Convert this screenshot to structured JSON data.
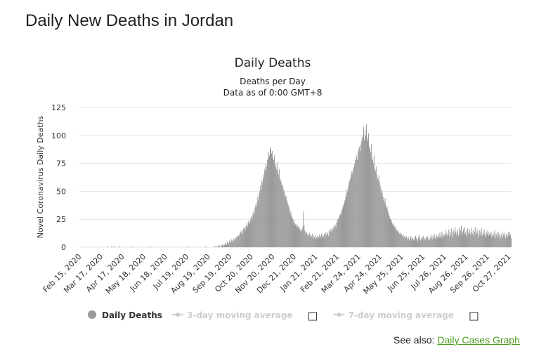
{
  "header": {
    "title": "Daily New Deaths in Jordan"
  },
  "chart_data": {
    "type": "bar",
    "title": "Daily Deaths",
    "subtitle": "Deaths per Day",
    "note": "Data as of 0:00 GMT+8",
    "y_label": "Novel Coronavirus Daily Deaths",
    "ylim": [
      0,
      125
    ],
    "yticks": [
      0,
      25,
      50,
      75,
      100,
      125
    ],
    "grid": true,
    "categories": [
      "Feb 15, 2020",
      null,
      null,
      null,
      null,
      null,
      null,
      null,
      null,
      null,
      null,
      null,
      null,
      null,
      null,
      null,
      null,
      null,
      null,
      null,
      null,
      null,
      null,
      null,
      null,
      null,
      null,
      null,
      null,
      null,
      null,
      "Mar 17, 2020",
      null,
      null,
      null,
      null,
      null,
      null,
      null,
      null,
      null,
      null,
      null,
      null,
      null,
      null,
      null,
      null,
      null,
      null,
      null,
      null,
      null,
      null,
      null,
      null,
      null,
      null,
      null,
      null,
      null,
      null,
      "Apr 17, 2020",
      null,
      null,
      null,
      null,
      null,
      null,
      null,
      null,
      null,
      null,
      null,
      null,
      null,
      null,
      null,
      null,
      null,
      null,
      null,
      null,
      null,
      null,
      null,
      null,
      null,
      null,
      null,
      null,
      null,
      null,
      "May 18, 2020",
      null,
      null,
      null,
      null,
      null,
      null,
      null,
      null,
      null,
      null,
      null,
      null,
      null,
      null,
      null,
      null,
      null,
      null,
      null,
      null,
      null,
      null,
      null,
      null,
      null,
      null,
      null,
      null,
      null,
      null,
      "Jun 18, 2020",
      null,
      null,
      null,
      null,
      null,
      null,
      null,
      null,
      null,
      null,
      null,
      null,
      null,
      null,
      null,
      null,
      null,
      null,
      null,
      null,
      null,
      null,
      null,
      null,
      null,
      null,
      null,
      null,
      null,
      null,
      "Jul 19, 2020",
      null,
      null,
      null,
      null,
      null,
      null,
      null,
      null,
      null,
      null,
      null,
      null,
      null,
      null,
      null,
      null,
      null,
      null,
      null,
      null,
      null,
      null,
      null,
      null,
      null,
      null,
      null,
      null,
      null,
      null,
      "Aug 19, 2020",
      null,
      null,
      null,
      null,
      null,
      null,
      null,
      null,
      null,
      null,
      null,
      null,
      null,
      null,
      null,
      null,
      null,
      null,
      null,
      null,
      null,
      null,
      null,
      null,
      null,
      null,
      null,
      null,
      null,
      null,
      "Sep 19, 2020",
      null,
      null,
      null,
      null,
      null,
      null,
      null,
      null,
      null,
      null,
      null,
      null,
      null,
      null,
      null,
      null,
      null,
      null,
      null,
      null,
      null,
      null,
      null,
      null,
      null,
      null,
      null,
      null,
      null,
      null,
      "Oct 20, 2020",
      null,
      null,
      null,
      null,
      null,
      null,
      null,
      null,
      null,
      null,
      null,
      null,
      null,
      null,
      null,
      null,
      null,
      null,
      null,
      null,
      null,
      null,
      null,
      null,
      null,
      null,
      null,
      null,
      null,
      null,
      "Nov 20, 2020",
      null,
      null,
      null,
      null,
      null,
      null,
      null,
      null,
      null,
      null,
      null,
      null,
      null,
      null,
      null,
      null,
      null,
      null,
      null,
      null,
      null,
      null,
      null,
      null,
      null,
      null,
      null,
      null,
      null,
      null,
      "Dec 21, 2020",
      null,
      null,
      null,
      null,
      null,
      null,
      null,
      null,
      null,
      null,
      null,
      null,
      null,
      null,
      null,
      null,
      null,
      null,
      null,
      null,
      null,
      null,
      null,
      null,
      null,
      null,
      null,
      null,
      null,
      null,
      "Jan 21, 2021",
      null,
      null,
      null,
      null,
      null,
      null,
      null,
      null,
      null,
      null,
      null,
      null,
      null,
      null,
      null,
      null,
      null,
      null,
      null,
      null,
      null,
      null,
      null,
      null,
      null,
      null,
      null,
      null,
      null,
      null,
      "Feb 21, 2021",
      null,
      null,
      null,
      null,
      null,
      null,
      null,
      null,
      null,
      null,
      null,
      null,
      null,
      null,
      null,
      null,
      null,
      null,
      null,
      null,
      null,
      null,
      null,
      null,
      null,
      null,
      null,
      null,
      null,
      null,
      "Mar 24, 2021",
      null,
      null,
      null,
      null,
      null,
      null,
      null,
      null,
      null,
      null,
      null,
      null,
      null,
      null,
      null,
      null,
      null,
      null,
      null,
      null,
      null,
      null,
      null,
      null,
      null,
      null,
      null,
      null,
      null,
      null,
      "Apr 24, 2021",
      null,
      null,
      null,
      null,
      null,
      null,
      null,
      null,
      null,
      null,
      null,
      null,
      null,
      null,
      null,
      null,
      null,
      null,
      null,
      null,
      null,
      null,
      null,
      null,
      null,
      null,
      null,
      null,
      null,
      null,
      "May 25, 2021",
      null,
      null,
      null,
      null,
      null,
      null,
      null,
      null,
      null,
      null,
      null,
      null,
      null,
      null,
      null,
      null,
      null,
      null,
      null,
      null,
      null,
      null,
      null,
      null,
      null,
      null,
      null,
      null,
      null,
      null,
      "Jun 25, 2021",
      null,
      null,
      null,
      null,
      null,
      null,
      null,
      null,
      null,
      null,
      null,
      null,
      null,
      null,
      null,
      null,
      null,
      null,
      null,
      null,
      null,
      null,
      null,
      null,
      null,
      null,
      null,
      null,
      null,
      null,
      "Jul 26, 2021",
      null,
      null,
      null,
      null,
      null,
      null,
      null,
      null,
      null,
      null,
      null,
      null,
      null,
      null,
      null,
      null,
      null,
      null,
      null,
      null,
      null,
      null,
      null,
      null,
      null,
      null,
      null,
      null,
      null,
      null,
      "Aug 26, 2021",
      null,
      null,
      null,
      null,
      null,
      null,
      null,
      null,
      null,
      null,
      null,
      null,
      null,
      null,
      null,
      null,
      null,
      null,
      null,
      null,
      null,
      null,
      null,
      null,
      null,
      null,
      null,
      null,
      null,
      null,
      "Sep 26, 2021",
      null,
      null,
      null,
      null,
      null,
      null,
      null,
      null,
      null,
      null,
      null,
      null,
      null,
      null,
      null,
      null,
      null,
      null,
      null,
      null,
      null,
      null,
      null,
      null,
      null,
      null,
      null,
      null,
      null,
      null,
      "Oct 27, 2021",
      null,
      null,
      null,
      null
    ],
    "series": [
      {
        "name": "Daily Deaths",
        "color": "#999999",
        "values": [
          0,
          0,
          0,
          0,
          0,
          0,
          0,
          0,
          0,
          0,
          0,
          0,
          0,
          0,
          0,
          0,
          0,
          0,
          0,
          0,
          0,
          0,
          0,
          0,
          0,
          0,
          0,
          0,
          0,
          0,
          0,
          0,
          0,
          0,
          0,
          0,
          0,
          0,
          0,
          0,
          0,
          0,
          1,
          0,
          0,
          0,
          0,
          1,
          1,
          0,
          0,
          1,
          0,
          0,
          0,
          0,
          0,
          0,
          0,
          1,
          0,
          0,
          0,
          0,
          0,
          0,
          0,
          0,
          0,
          0,
          0,
          0,
          0,
          0,
          0,
          0,
          1,
          0,
          0,
          0,
          0,
          0,
          0,
          0,
          0,
          0,
          0,
          0,
          0,
          0,
          0,
          0,
          0,
          0,
          0,
          0,
          0,
          0,
          0,
          0,
          0,
          0,
          0,
          1,
          0,
          0,
          0,
          0,
          0,
          0,
          0,
          0,
          0,
          0,
          0,
          0,
          0,
          0,
          0,
          0,
          0,
          0,
          0,
          0,
          0,
          0,
          0,
          0,
          0,
          0,
          0,
          0,
          0,
          0,
          0,
          0,
          0,
          0,
          0,
          0,
          0,
          0,
          0,
          0,
          0,
          0,
          0,
          0,
          0,
          0,
          0,
          0,
          0,
          0,
          0,
          0,
          1,
          0,
          0,
          0,
          0,
          0,
          0,
          0,
          0,
          0,
          0,
          0,
          0,
          0,
          0,
          0,
          0,
          0,
          0,
          0,
          0,
          0,
          0,
          0,
          0,
          0,
          0,
          1,
          0,
          0,
          0,
          0,
          0,
          0,
          0,
          0,
          0,
          0,
          1,
          0,
          0,
          1,
          0,
          1,
          0,
          1,
          2,
          1,
          0,
          2,
          1,
          3,
          2,
          1,
          2,
          4,
          3,
          2,
          5,
          4,
          3,
          6,
          5,
          4,
          7,
          6,
          5,
          8,
          7,
          6,
          9,
          8,
          10,
          9,
          11,
          10,
          12,
          14,
          13,
          15,
          12,
          16,
          18,
          17,
          15,
          19,
          20,
          18,
          22,
          24,
          21,
          23,
          26,
          28,
          25,
          30,
          32,
          29,
          35,
          38,
          36,
          40,
          45,
          42,
          48,
          50,
          55,
          52,
          60,
          58,
          65,
          62,
          70,
          68,
          75,
          72,
          78,
          80,
          85,
          82,
          88,
          90,
          84,
          86,
          80,
          78,
          82,
          75,
          72,
          70,
          76,
          68,
          65,
          70,
          62,
          60,
          58,
          55,
          56,
          52,
          50,
          48,
          45,
          46,
          42,
          40,
          38,
          36,
          34,
          30,
          32,
          28,
          26,
          25,
          22,
          24,
          20,
          21,
          18,
          20,
          19,
          17,
          18,
          16,
          15,
          14,
          16,
          18,
          32,
          20,
          15,
          13,
          12,
          14,
          11,
          12,
          10,
          13,
          11,
          9,
          10,
          12,
          8,
          10,
          9,
          11,
          7,
          9,
          10,
          8,
          9,
          11,
          8,
          10,
          12,
          9,
          11,
          10,
          12,
          9,
          13,
          11,
          14,
          12,
          10,
          15,
          13,
          16,
          14,
          17,
          15,
          18,
          16,
          19,
          20,
          18,
          22,
          24,
          26,
          25,
          28,
          30,
          29,
          32,
          34,
          36,
          38,
          40,
          42,
          45,
          48,
          52,
          50,
          55,
          58,
          60,
          62,
          65,
          68,
          66,
          70,
          72,
          75,
          78,
          80,
          82,
          78,
          85,
          88,
          90,
          86,
          92,
          95,
          98,
          100,
          108,
          96,
          105,
          100,
          110,
          98,
          95,
          102,
          90,
          88,
          85,
          92,
          80,
          78,
          75,
          82,
          70,
          68,
          72,
          65,
          62,
          60,
          64,
          58,
          55,
          50,
          52,
          48,
          45,
          42,
          40,
          44,
          38,
          35,
          36,
          32,
          30,
          28,
          26,
          25,
          24,
          22,
          20,
          21,
          18,
          19,
          17,
          16,
          15,
          14,
          15,
          13,
          12,
          13,
          11,
          12,
          10,
          11,
          9,
          10,
          8,
          9,
          10,
          8,
          7,
          9,
          6,
          8,
          10,
          7,
          9,
          8,
          6,
          7,
          9,
          10,
          8,
          7,
          5,
          9,
          8,
          11,
          6,
          8,
          7,
          9,
          10,
          6,
          8,
          7,
          9,
          8,
          10,
          7,
          9,
          6,
          8,
          11,
          9,
          7,
          10,
          8,
          12,
          9,
          7,
          11,
          10,
          8,
          12,
          9,
          13,
          10,
          8,
          14,
          11,
          9,
          12,
          10,
          15,
          11,
          13,
          10,
          12,
          16,
          10,
          14,
          11,
          17,
          13,
          9,
          15,
          12,
          18,
          14,
          11,
          16,
          13,
          10,
          17,
          12,
          15,
          19,
          11,
          14,
          16,
          12,
          18,
          13,
          10,
          15,
          17,
          12,
          14,
          16,
          11,
          13,
          17,
          12,
          15,
          10,
          14,
          18,
          11,
          13,
          16,
          12,
          9,
          15,
          11,
          14,
          17,
          10,
          13,
          12,
          16,
          11,
          9,
          14,
          12,
          15,
          10,
          13,
          11,
          12,
          14,
          9,
          11,
          13,
          10,
          15,
          8,
          12,
          11,
          14,
          9,
          13,
          10,
          12,
          8,
          11,
          14,
          9,
          12,
          10,
          13,
          8,
          11,
          12,
          9,
          14,
          10,
          13,
          11,
          8
        ]
      }
    ],
    "inactive_series": [
      "3-day moving average",
      "7-day moving average"
    ]
  },
  "footer": {
    "see_also": "See also:",
    "link": "Daily Cases Graph"
  }
}
